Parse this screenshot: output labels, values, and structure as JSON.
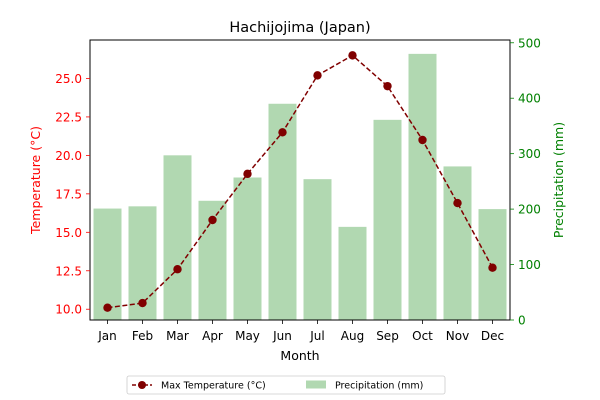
{
  "chart_data": {
    "type": "bar+line",
    "title": "Hachijojima (Japan)",
    "xlabel": "Month",
    "categories": [
      "Jan",
      "Feb",
      "Mar",
      "Apr",
      "May",
      "Jun",
      "Jul",
      "Aug",
      "Sep",
      "Oct",
      "Nov",
      "Dec"
    ],
    "left_axis": {
      "label": "Temperature (°C)",
      "color": "#ff0000",
      "ylim": [
        9.3,
        27.5
      ],
      "ticks": [
        10.0,
        12.5,
        15.0,
        17.5,
        20.0,
        22.5,
        25.0
      ],
      "tick_labels": [
        "10.0",
        "12.5",
        "15.0",
        "17.5",
        "20.0",
        "22.5",
        "25.0"
      ]
    },
    "right_axis": {
      "label": "Precipitation (mm)",
      "color": "#008000",
      "ylim": [
        0,
        505
      ],
      "ticks": [
        0,
        100,
        200,
        300,
        400,
        500
      ],
      "tick_labels": [
        "0",
        "100",
        "200",
        "300",
        "400",
        "500"
      ]
    },
    "series": [
      {
        "name": "Max Temperature (°C)",
        "kind": "line",
        "axis": "left",
        "color": "#800000",
        "values": [
          10.1,
          10.4,
          12.6,
          15.8,
          18.8,
          21.5,
          25.2,
          26.5,
          24.5,
          21.0,
          16.9,
          12.7
        ]
      },
      {
        "name": "Precipitation (mm)",
        "kind": "bar",
        "axis": "right",
        "color": "#b1d8b1",
        "values": [
          201,
          205,
          297,
          215,
          257,
          390,
          254,
          168,
          361,
          480,
          277,
          200
        ]
      }
    ],
    "legend": {
      "placement": "bottom-center",
      "columns": 2
    },
    "grid": false
  }
}
